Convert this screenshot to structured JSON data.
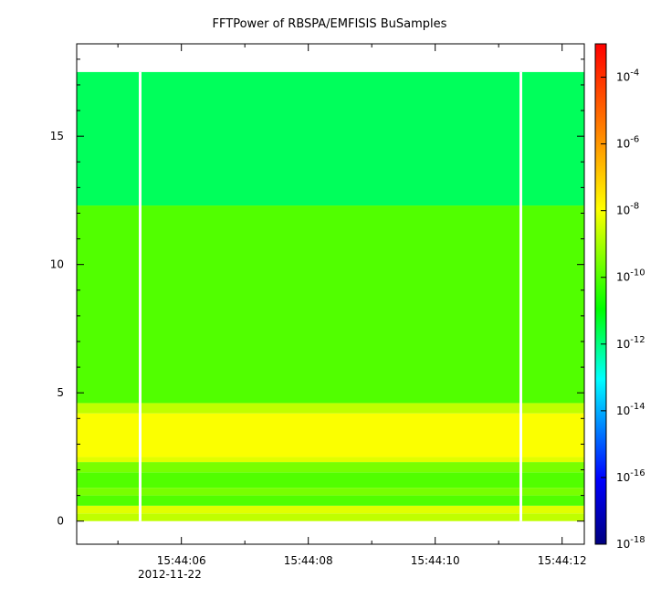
{
  "chart_data": {
    "type": "heatmap",
    "title": "FFTPower of RBSPA/EMFISIS  BuSamples",
    "xlabel": "",
    "ylabel": "",
    "zlabel": "",
    "date_label": "2012-11-22",
    "x_tick_labels": [
      "15:44:06",
      "15:44:08",
      "15:44:10",
      "15:44:12"
    ],
    "x_tick_values_sec": [
      6,
      8,
      10,
      12
    ],
    "x_range_sec": [
      4.35,
      12.35
    ],
    "y_ticks": [
      0,
      5,
      10,
      15
    ],
    "ylim": [
      -0.9,
      18.6
    ],
    "y_data_range": [
      0,
      17.5
    ],
    "z_scale": "log",
    "z_range": [
      1e-18,
      0.001
    ],
    "colorbar_tick_labels": [
      {
        "base": "10",
        "exp": "-4",
        "value": 0.0001
      },
      {
        "base": "10",
        "exp": "-6",
        "value": 1e-06
      },
      {
        "base": "10",
        "exp": "-8",
        "value": 1e-08
      },
      {
        "base": "10",
        "exp": "-10",
        "value": 1e-10
      },
      {
        "base": "10",
        "exp": "-12",
        "value": 1e-12
      },
      {
        "base": "10",
        "exp": "-14",
        "value": 1e-14
      },
      {
        "base": "10",
        "exp": "-16",
        "value": 1e-16
      },
      {
        "base": "10",
        "exp": "-18",
        "value": 1e-18
      }
    ],
    "data_gaps_sec": [
      5.35,
      11.35
    ],
    "bands": [
      {
        "y": [
          0.0,
          0.3
        ],
        "z": 2e-09
      },
      {
        "y": [
          0.3,
          0.6
        ],
        "z": 5e-09
      },
      {
        "y": [
          0.6,
          1.0
        ],
        "z": 1e-10
      },
      {
        "y": [
          1.0,
          1.3
        ],
        "z": 3e-10
      },
      {
        "y": [
          1.3,
          1.9
        ],
        "z": 1e-10
      },
      {
        "y": [
          1.9,
          2.3
        ],
        "z": 3e-10
      },
      {
        "y": [
          2.3,
          2.5
        ],
        "z": 5e-09
      },
      {
        "y": [
          2.5,
          4.2
        ],
        "z": 1e-08
      },
      {
        "y": [
          4.2,
          4.6
        ],
        "z": 2e-09
      },
      {
        "y": [
          4.6,
          12.3
        ],
        "z": 1e-10
      },
      {
        "y": [
          12.3,
          17.5
        ],
        "z": 2e-12
      }
    ],
    "colormap": [
      "#00007f",
      "#0000ff",
      "#00ffff",
      "#00ff00",
      "#ffff00",
      "#ff7f00",
      "#ff0000"
    ]
  }
}
